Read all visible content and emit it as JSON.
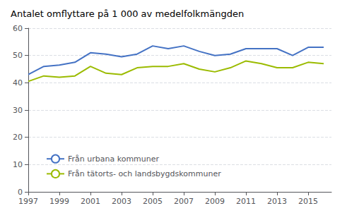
{
  "chart_data": {
    "type": "line",
    "title": "Antalet omflyttare på 1 000 av medelfolkmängden",
    "x": [
      1997,
      1998,
      1999,
      2000,
      2001,
      2002,
      2003,
      2004,
      2005,
      2006,
      2007,
      2008,
      2009,
      2010,
      2011,
      2012,
      2013,
      2014,
      2015,
      2016
    ],
    "series": [
      {
        "name": "Från urbana kommuner",
        "color": "#4472C4",
        "values": [
          43.0,
          46.0,
          46.5,
          47.5,
          51.0,
          50.5,
          49.5,
          50.5,
          53.5,
          52.5,
          53.5,
          51.5,
          50.0,
          50.5,
          52.5,
          52.5,
          52.5,
          50.0,
          53.0,
          53.0
        ]
      },
      {
        "name": "Från tätorts- och landsbygdskommuner",
        "color": "#9BBB00",
        "values": [
          40.5,
          42.5,
          42.0,
          42.5,
          46.0,
          43.5,
          43.0,
          45.5,
          46.0,
          46.0,
          47.0,
          45.0,
          44.0,
          45.5,
          48.0,
          47.0,
          45.5,
          45.5,
          47.5,
          47.0
        ]
      }
    ],
    "xlim": [
      1997,
      2016.5
    ],
    "xticks": [
      1997,
      1999,
      2001,
      2003,
      2005,
      2007,
      2009,
      2011,
      2013,
      2015
    ],
    "ylim": [
      0,
      60
    ],
    "yticks": [
      0,
      10,
      20,
      30,
      40,
      50,
      60
    ],
    "grid": true,
    "legend": "lower left"
  }
}
